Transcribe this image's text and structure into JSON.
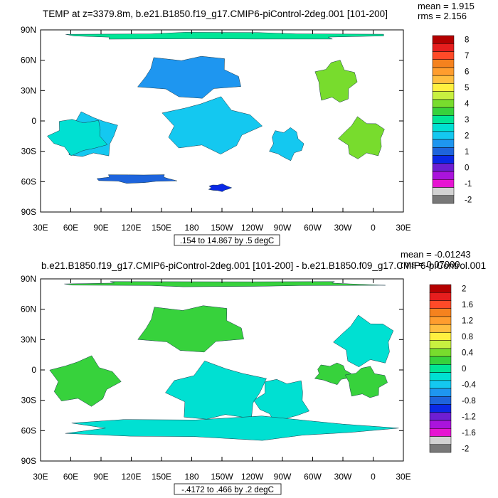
{
  "chart_data": [
    {
      "type": "heatmap",
      "title": "TEMP at z=3379.8m, b.e21.B1850.f19_g17.CMIP6-piControl-2deg.001 [101-200]",
      "stats": {
        "mean": "mean = 1.915",
        "rms": "rms = 2.156"
      },
      "contour_info": ".154 to 14.867 by .5 degC",
      "x_ticks": [
        "30E",
        "60E",
        "90E",
        "120E",
        "150E",
        "180",
        "150W",
        "120W",
        "90W",
        "60W",
        "30W",
        "0",
        "30E"
      ],
      "y_ticks": [
        "90N",
        "60N",
        "30N",
        "0",
        "30S",
        "60S",
        "90S"
      ],
      "grid": false,
      "legend_position": "right",
      "colorbar": {
        "labels": [
          "8",
          "7",
          "6",
          "5",
          "4",
          "3",
          "2",
          "1",
          "0",
          "-1",
          "-2"
        ],
        "colors": [
          "#b40000",
          "#e61e1e",
          "#ff4a28",
          "#f5821e",
          "#ff9d2e",
          "#ffbe40",
          "#fff040",
          "#c8f040",
          "#78dc2d",
          "#37d23c",
          "#00e696",
          "#00e0d2",
          "#14c8f0",
          "#1e96f0",
          "#1e64dc",
          "#0a28e6",
          "#6e1ed2",
          "#aa14dc",
          "#e614d2",
          "#d2d2d2",
          "#787878"
        ]
      },
      "regions": [
        {
          "value": 1.0,
          "color": "#1e96f0",
          "lon": [
            120,
            237
          ],
          "lat": [
            20,
            68
          ]
        },
        {
          "value": 1.5,
          "color": "#14c8f0",
          "lon": [
            145,
            250
          ],
          "lat": [
            -35,
            25
          ]
        },
        {
          "value": 1.5,
          "color": "#14c8f0",
          "lon": [
            45,
            110
          ],
          "lat": [
            -40,
            10
          ]
        },
        {
          "value": 2.0,
          "color": "#00e0d2",
          "lon": [
            35,
            100
          ],
          "lat": [
            -35,
            5
          ]
        },
        {
          "value": 1.5,
          "color": "#14c8f0",
          "lon": [
            255,
            293
          ],
          "lat": [
            -40,
            -5
          ]
        },
        {
          "value": 3.5,
          "color": "#78dc2d",
          "lon": [
            300,
            345
          ],
          "lat": [
            15,
            62
          ]
        },
        {
          "value": 3.5,
          "color": "#78dc2d",
          "lon": [
            325,
            375
          ],
          "lat": [
            -40,
            5
          ]
        },
        {
          "value": 1.0,
          "color": "#1e64dc",
          "lon": [
            80,
            170
          ],
          "lat": [
            -62,
            -52
          ]
        },
        {
          "value": 0.5,
          "color": "#0a28e6",
          "lon": [
            195,
            220
          ],
          "lat": [
            -70,
            -62
          ]
        },
        {
          "value": 2.5,
          "color": "#00e696",
          "lon": [
            30,
            390
          ],
          "lat": [
            80,
            88
          ]
        }
      ]
    },
    {
      "type": "heatmap",
      "title": "b.e21.B1850.f19_g17.CMIP6-piControl-2deg.001 [101-200] - b.e21.B1850.f09_g17.CMIP6-piControl.001",
      "stats": {
        "mean": "mean = -0.01243",
        "rms": "rms = 0.07000"
      },
      "contour_info": "-.4172 to .466 by .2 degC",
      "x_ticks": [
        "30E",
        "60E",
        "90E",
        "120E",
        "150E",
        "180",
        "150W",
        "120W",
        "90W",
        "60W",
        "30W",
        "0",
        "30E"
      ],
      "y_ticks": [
        "90N",
        "60N",
        "30N",
        "0",
        "30S",
        "60S",
        "90S"
      ],
      "grid": false,
      "legend_position": "right",
      "colorbar": {
        "labels": [
          "2",
          "1.6",
          "1.2",
          "0.8",
          "0.4",
          "0",
          "-0.4",
          "-0.8",
          "-1.2",
          "-1.6",
          "-2"
        ],
        "colors": [
          "#b40000",
          "#e61e1e",
          "#ff4a28",
          "#f5821e",
          "#ff9d2e",
          "#ffbe40",
          "#fff040",
          "#c8f040",
          "#78dc2d",
          "#37d23c",
          "#00e696",
          "#00e0d2",
          "#14c8f0",
          "#1e96f0",
          "#1e64dc",
          "#0a28e6",
          "#6e1ed2",
          "#aa14dc",
          "#e614d2",
          "#d2d2d2",
          "#787878"
        ]
      },
      "regions": [
        {
          "value": 0.2,
          "color": "#37d23c",
          "lon": [
            120,
            240
          ],
          "lat": [
            15,
            68
          ]
        },
        {
          "value": 0.2,
          "color": "#37d23c",
          "lon": [
            35,
            110
          ],
          "lat": [
            -38,
            15
          ]
        },
        {
          "value": -0.2,
          "color": "#00e0d2",
          "lon": [
            150,
            260
          ],
          "lat": [
            -55,
            10
          ]
        },
        {
          "value": -0.2,
          "color": "#00e0d2",
          "lon": [
            240,
            300
          ],
          "lat": [
            -55,
            -5
          ]
        },
        {
          "value": 0.2,
          "color": "#37d23c",
          "lon": [
            300,
            340
          ],
          "lat": [
            -15,
            8
          ]
        },
        {
          "value": 0.2,
          "color": "#37d23c",
          "lon": [
            330,
            375
          ],
          "lat": [
            -30,
            5
          ]
        },
        {
          "value": -0.2,
          "color": "#00e0d2",
          "lon": [
            320,
            385
          ],
          "lat": [
            0,
            55
          ]
        },
        {
          "value": 0.2,
          "color": "#37d23c",
          "lon": [
            30,
            390
          ],
          "lat": [
            82,
            88
          ]
        },
        {
          "value": -0.2,
          "color": "#00e0d2",
          "lon": [
            30,
            390
          ],
          "lat": [
            -70,
            -45
          ]
        }
      ]
    }
  ]
}
